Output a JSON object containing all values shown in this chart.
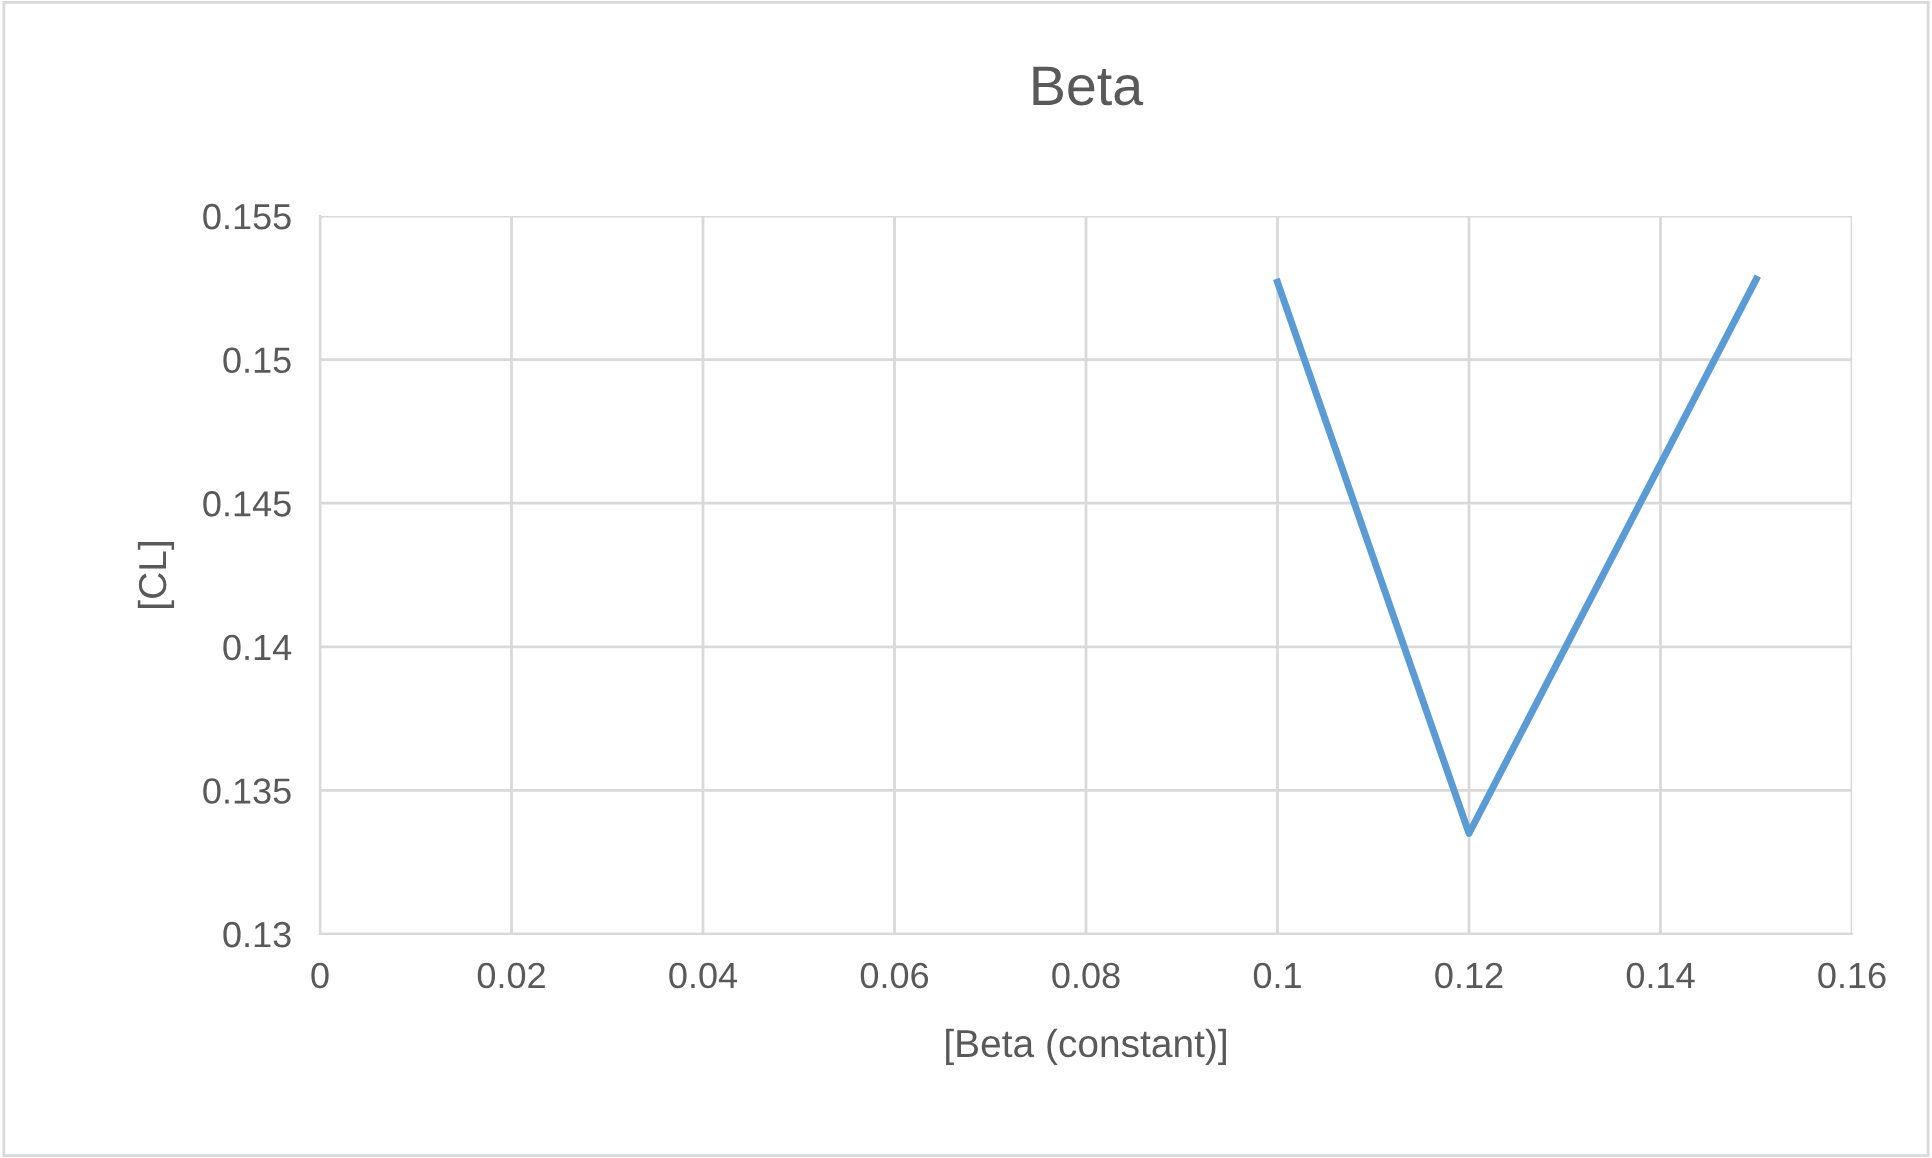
{
  "chart_data": {
    "type": "line",
    "title": "Beta",
    "xlabel": "[Beta (constant)]",
    "ylabel": "[CL]",
    "x": [
      0.1,
      0.12,
      0.15
    ],
    "series": [
      {
        "color": "#5b9bd5",
        "values": [
          0.1527,
          0.1335,
          0.1528
        ]
      }
    ],
    "xlim": [
      0,
      0.16
    ],
    "xticks": [
      0,
      0.02,
      0.04,
      0.06,
      0.08,
      0.1,
      0.12,
      0.14,
      0.16
    ],
    "ylim": [
      0.13,
      0.155
    ],
    "yticks": [
      0.13,
      0.135,
      0.14,
      0.145,
      0.15,
      0.155
    ],
    "grid": true,
    "marker": "none",
    "line_style": "solid"
  }
}
